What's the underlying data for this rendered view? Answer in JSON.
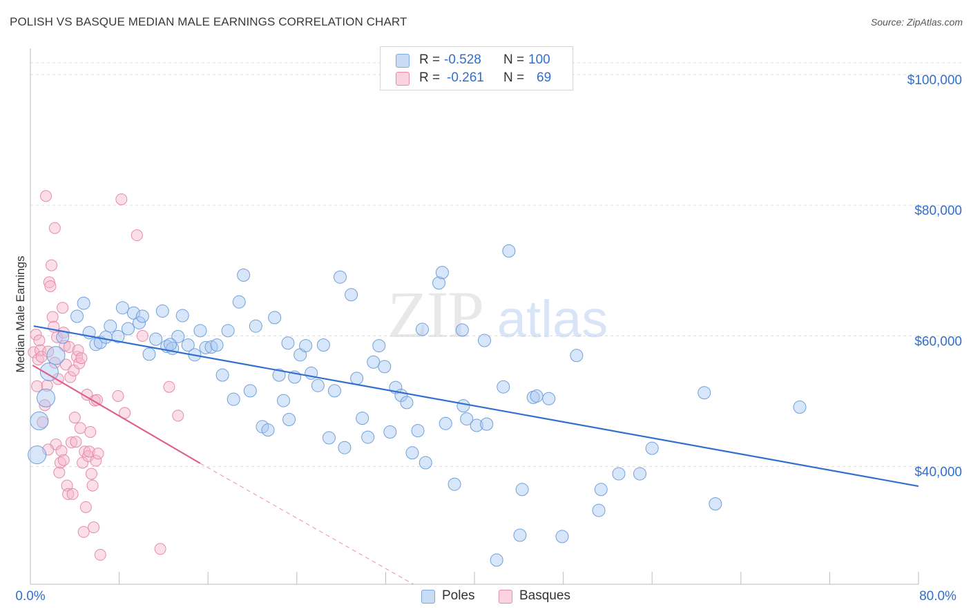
{
  "title": "POLISH VS BASQUE MEDIAN MALE EARNINGS CORRELATION CHART",
  "source": "Source: ZipAtlas.com",
  "watermark": {
    "zip": "ZIP",
    "atlas": "atlas"
  },
  "legend": {
    "rows": [
      {
        "r_label": "R =",
        "r_value": "-0.528",
        "n_label": "N =",
        "n_value": "100",
        "color": "#a9c8f2"
      },
      {
        "r_label": "R =",
        "r_value": "-0.261",
        "n_label": "N =",
        "n_value": "69",
        "color": "#f5b8cb"
      }
    ]
  },
  "bottom_legend": [
    {
      "label": "Poles",
      "color": "#a9c8f2"
    },
    {
      "label": "Basques",
      "color": "#f5b8cb"
    }
  ],
  "chart_data": {
    "type": "scatter",
    "title": "POLISH VS BASQUE MEDIAN MALE EARNINGS CORRELATION CHART",
    "xlabel": "",
    "ylabel": "Median Male Earnings",
    "xlim": [
      0,
      80
    ],
    "ylim": [
      22000,
      104000
    ],
    "x_tick_labels": [
      "0.0%",
      "80.0%"
    ],
    "y_ticks": [
      40000,
      60000,
      80000,
      100000
    ],
    "y_tick_labels": [
      "$40,000",
      "$60,000",
      "$80,000",
      "$100,000"
    ],
    "grid": true,
    "colors": {
      "poles": "#2f6fd0",
      "poles_fill": "#a9c8f2",
      "basques": "#e0608a",
      "basques_fill": "#f5b8cb",
      "tick_label": "#2f6fd0"
    },
    "series": [
      {
        "name": "Poles",
        "trend": {
          "x": [
            0.3,
            80
          ],
          "y": [
            61500,
            37000
          ]
        },
        "points": [
          [
            0.8,
            47000
          ],
          [
            0.6,
            41800
          ],
          [
            1.4,
            50500
          ],
          [
            1.7,
            54500
          ],
          [
            2.3,
            57000
          ],
          [
            2.9,
            59800
          ],
          [
            4.2,
            63000
          ],
          [
            4.8,
            65000
          ],
          [
            5.3,
            60500
          ],
          [
            5.9,
            58700
          ],
          [
            6.3,
            59000
          ],
          [
            6.8,
            59800
          ],
          [
            7.2,
            61500
          ],
          [
            7.9,
            59900
          ],
          [
            8.3,
            64300
          ],
          [
            8.8,
            61100
          ],
          [
            9.3,
            63500
          ],
          [
            9.8,
            62000
          ],
          [
            10.1,
            63000
          ],
          [
            10.7,
            57200
          ],
          [
            11.3,
            59500
          ],
          [
            11.9,
            63800
          ],
          [
            12.3,
            58400
          ],
          [
            12.8,
            58100
          ],
          [
            13.3,
            59900
          ],
          [
            13.7,
            63100
          ],
          [
            14.2,
            58600
          ],
          [
            14.8,
            57100
          ],
          [
            15.3,
            60800
          ],
          [
            15.8,
            58200
          ],
          [
            16.3,
            58300
          ],
          [
            16.8,
            58600
          ],
          [
            17.3,
            54000
          ],
          [
            17.8,
            60800
          ],
          [
            18.3,
            50300
          ],
          [
            18.8,
            65200
          ],
          [
            19.2,
            69300
          ],
          [
            19.8,
            51600
          ],
          [
            20.3,
            61500
          ],
          [
            20.9,
            46100
          ],
          [
            21.4,
            45600
          ],
          [
            22.0,
            62800
          ],
          [
            22.4,
            54000
          ],
          [
            22.8,
            50100
          ],
          [
            23.3,
            47200
          ],
          [
            23.8,
            53700
          ],
          [
            24.3,
            57100
          ],
          [
            24.8,
            58500
          ],
          [
            25.3,
            54300
          ],
          [
            25.9,
            52400
          ],
          [
            26.4,
            58600
          ],
          [
            26.9,
            44400
          ],
          [
            27.4,
            51600
          ],
          [
            27.9,
            69000
          ],
          [
            28.3,
            42900
          ],
          [
            28.9,
            66300
          ],
          [
            29.4,
            53500
          ],
          [
            29.9,
            47400
          ],
          [
            30.4,
            44500
          ],
          [
            30.9,
            56000
          ],
          [
            31.4,
            58500
          ],
          [
            31.9,
            55300
          ],
          [
            32.4,
            45300
          ],
          [
            32.9,
            52100
          ],
          [
            33.4,
            50900
          ],
          [
            33.9,
            49800
          ],
          [
            34.4,
            42100
          ],
          [
            34.9,
            45500
          ],
          [
            35.3,
            61000
          ],
          [
            35.6,
            40600
          ],
          [
            36.8,
            68100
          ],
          [
            37.1,
            69700
          ],
          [
            37.4,
            46600
          ],
          [
            38.2,
            37300
          ],
          [
            39.0,
            49300
          ],
          [
            39.3,
            47300
          ],
          [
            40.2,
            46300
          ],
          [
            40.9,
            59300
          ],
          [
            41.1,
            46500
          ],
          [
            42.0,
            25700
          ],
          [
            42.6,
            52200
          ],
          [
            43.1,
            73000
          ],
          [
            44.1,
            29500
          ],
          [
            44.3,
            36500
          ],
          [
            45.3,
            50600
          ],
          [
            45.6,
            50800
          ],
          [
            46.7,
            50400
          ],
          [
            47.9,
            29300
          ],
          [
            49.2,
            57000
          ],
          [
            51.2,
            33300
          ],
          [
            51.4,
            36500
          ],
          [
            53.0,
            38900
          ],
          [
            54.9,
            38900
          ],
          [
            56.0,
            42800
          ],
          [
            60.7,
            51300
          ],
          [
            61.7,
            34300
          ],
          [
            69.3,
            49100
          ],
          [
            38.9,
            60900
          ],
          [
            23.2,
            58900
          ],
          [
            12.6,
            58700
          ]
        ]
      },
      {
        "name": "Basques",
        "trend": {
          "x": [
            0.2,
            15.3
          ],
          "y": [
            55500,
            40500
          ]
        },
        "trend_extension": {
          "x": [
            15.3,
            34.5
          ],
          "y": [
            40500,
            22000
          ]
        },
        "points": [
          [
            0.3,
            57500
          ],
          [
            0.5,
            60200
          ],
          [
            0.6,
            52300
          ],
          [
            0.7,
            56400
          ],
          [
            0.8,
            59300
          ],
          [
            0.9,
            57800
          ],
          [
            1.0,
            56800
          ],
          [
            1.1,
            46800
          ],
          [
            1.3,
            49400
          ],
          [
            1.4,
            81400
          ],
          [
            1.5,
            52400
          ],
          [
            1.6,
            57600
          ],
          [
            1.7,
            68200
          ],
          [
            1.8,
            67600
          ],
          [
            1.9,
            70800
          ],
          [
            2.0,
            62900
          ],
          [
            2.1,
            61400
          ],
          [
            2.2,
            55900
          ],
          [
            2.3,
            43400
          ],
          [
            2.4,
            59800
          ],
          [
            2.5,
            53400
          ],
          [
            2.6,
            39100
          ],
          [
            2.7,
            40600
          ],
          [
            2.8,
            42400
          ],
          [
            2.9,
            64300
          ],
          [
            3.0,
            60500
          ],
          [
            3.1,
            58500
          ],
          [
            3.2,
            55600
          ],
          [
            3.3,
            37100
          ],
          [
            3.4,
            35800
          ],
          [
            3.5,
            58300
          ],
          [
            3.6,
            53700
          ],
          [
            3.7,
            43700
          ],
          [
            3.8,
            35800
          ],
          [
            3.9,
            54700
          ],
          [
            4.0,
            47500
          ],
          [
            4.1,
            43800
          ],
          [
            4.2,
            56800
          ],
          [
            4.3,
            57800
          ],
          [
            4.4,
            55800
          ],
          [
            4.5,
            45900
          ],
          [
            4.6,
            56600
          ],
          [
            4.7,
            40600
          ],
          [
            4.8,
            30000
          ],
          [
            4.9,
            42300
          ],
          [
            5.0,
            33800
          ],
          [
            5.1,
            51000
          ],
          [
            5.2,
            41600
          ],
          [
            5.3,
            42300
          ],
          [
            5.4,
            45300
          ],
          [
            5.5,
            38900
          ],
          [
            5.6,
            37100
          ],
          [
            5.7,
            30700
          ],
          [
            5.8,
            50100
          ],
          [
            5.9,
            40900
          ],
          [
            6.0,
            50200
          ],
          [
            6.1,
            42000
          ],
          [
            6.3,
            26500
          ],
          [
            7.9,
            50800
          ],
          [
            8.2,
            80900
          ],
          [
            8.5,
            48200
          ],
          [
            9.6,
            75400
          ],
          [
            10.1,
            60000
          ],
          [
            11.7,
            27400
          ],
          [
            12.5,
            52200
          ],
          [
            13.3,
            47800
          ],
          [
            2.2,
            76500
          ],
          [
            1.6,
            42600
          ],
          [
            3.0,
            41000
          ]
        ]
      }
    ]
  }
}
